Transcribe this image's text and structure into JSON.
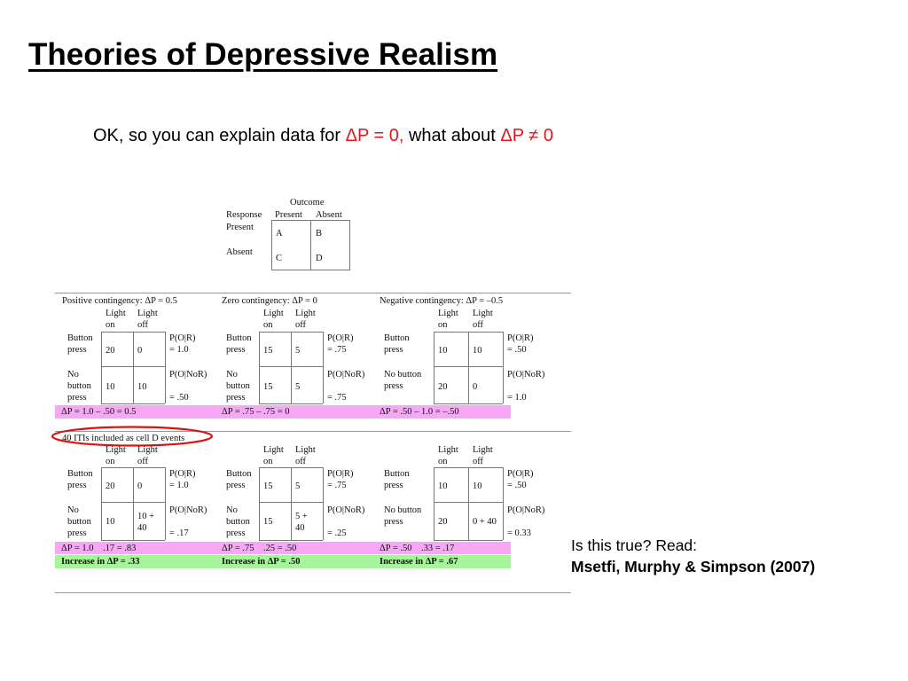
{
  "slide": {
    "title": "Theories of Depressive Realism",
    "subtitle": {
      "lead": "OK, so you can explain data for ",
      "dp0": "ΔP = 0,",
      "mid": " what  about ",
      "dpn0": "ΔP ≠ 0"
    },
    "note": {
      "question": "Is this true? Read:",
      "reference": "Msetfi, Murphy & Simpson (2007)"
    }
  },
  "matrix": {
    "outcome": "Outcome",
    "response": "Response",
    "col_present": "Present",
    "col_absent": "Absent",
    "row_present": "Present",
    "row_absent": "Absent",
    "cells": [
      "A",
      "B",
      "C",
      "D"
    ]
  },
  "figure": {
    "light_on": [
      "Light",
      "on"
    ],
    "light_off": [
      "Light",
      "off"
    ],
    "top": {
      "pos": {
        "heading": "Positive contingency: ΔP = 0.5",
        "row1": [
          "Button",
          "press"
        ],
        "row2": [
          "No",
          "button",
          "press"
        ],
        "c11": "20",
        "c12": "0",
        "c21": "10",
        "c22": "10",
        "p1": [
          "P(O|R)",
          "= 1.0"
        ],
        "p2": [
          "P(O|NoR)",
          "= .50"
        ],
        "dp": "ΔP = 1.0 – .50 = 0.5"
      },
      "zero": {
        "heading": "Zero contingency: ΔP = 0",
        "row1": [
          "Button",
          "press"
        ],
        "row2": [
          "No",
          "button",
          "press"
        ],
        "c11": "15",
        "c12": "5",
        "c21": "15",
        "c22": "5",
        "p1": [
          "P(O|R)",
          "= .75"
        ],
        "p2": [
          "P(O|NoR)",
          "= .75"
        ],
        "dp": "ΔP = .75 – .75 = 0"
      },
      "neg": {
        "heading": "Negative contingency: ΔP = –0.5",
        "row1": [
          "Button",
          "press"
        ],
        "row2": [
          "No button",
          "press"
        ],
        "c11": "10",
        "c12": "10",
        "c21": "20",
        "c22": "0",
        "p1": [
          "P(O|R)",
          "= .50"
        ],
        "p2": [
          "P(O|NoR)",
          "= 1.0"
        ],
        "dp": "ΔP = .50 – 1.0 = –.50"
      }
    },
    "iti_note": "40 ITIs included as cell D events",
    "bottom": {
      "pos": {
        "row1": [
          "Button",
          "press"
        ],
        "row2": [
          "No",
          "button",
          "press"
        ],
        "c11": "20",
        "c12": "0",
        "c21": "10",
        "c22": [
          "10 +",
          "40"
        ],
        "p1": [
          "P(O|R)",
          "= 1.0"
        ],
        "p2": [
          "P(O|NoR)",
          "= .17"
        ],
        "dp": "ΔP = 1.0    .17 = .83",
        "inc": "Increase in ΔP = .33"
      },
      "zero": {
        "row1": [
          "Button",
          "press"
        ],
        "row2": [
          "No",
          "button",
          "press"
        ],
        "c11": "15",
        "c12": "5",
        "c21": "15",
        "c22": [
          "5 +",
          "40"
        ],
        "p1": [
          "P(O|R)",
          "= .75"
        ],
        "p2": [
          "P(O|NoR)",
          "= .25"
        ],
        "dp": "ΔP = .75    .25 = .50",
        "inc": "Increase in ΔP = .50"
      },
      "neg": {
        "row1": [
          "Button",
          "press"
        ],
        "row2": [
          "No button",
          "press"
        ],
        "c11": "10",
        "c12": "10",
        "c21": "20",
        "c22": "0 + 40",
        "p1": [
          "P(O|R)",
          "= .50"
        ],
        "p2": [
          "P(O|NoR)",
          "= 0.33"
        ],
        "dp": "ΔP = .50    .33 = .17",
        "inc": "Increase in ΔP = .67"
      }
    }
  },
  "colors": {
    "red": "#e8141b",
    "pink_band": "#f7a7f6",
    "green_band": "#a6f59a",
    "circle": "#e01010"
  }
}
